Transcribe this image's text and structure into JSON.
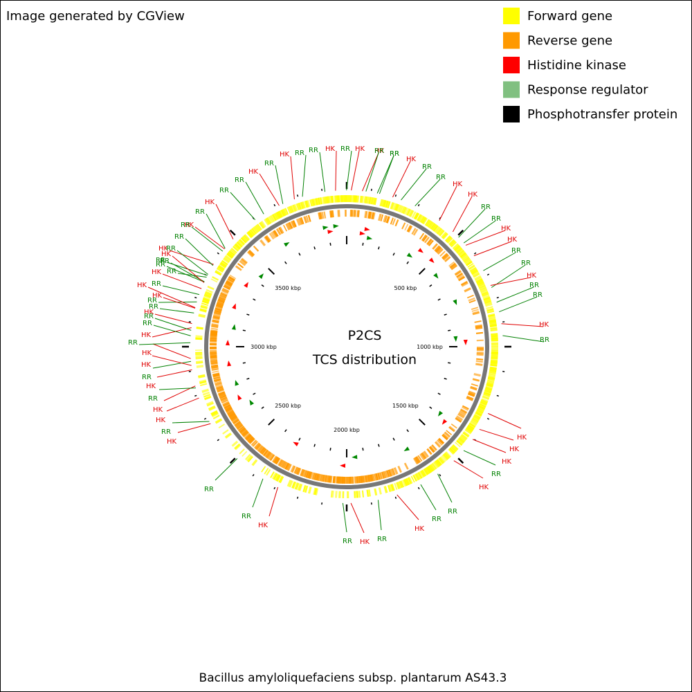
{
  "header": {
    "credit": "Image generated by CGView"
  },
  "legend": [
    {
      "label": "Forward gene",
      "color": "#ffff00"
    },
    {
      "label": "Reverse gene",
      "color": "#ff9900"
    },
    {
      "label": "Histidine kinase",
      "color": "#ff0000"
    },
    {
      "label": "Response regulator",
      "color": "#80c080"
    },
    {
      "label": "Phosphotransfer protein",
      "color": "#000000"
    }
  ],
  "center": {
    "title": "P2CS",
    "subtitle": "TCS distribution"
  },
  "footer": {
    "organism": "Bacillus amyloliquefaciens subsp. plantarum AS43.3"
  },
  "scale_labels": [
    "500 kbp",
    "1000 kbp",
    "1500 kbp",
    "2000 kbp",
    "2500 kbp",
    "3000 kbp",
    "3500 kbp"
  ],
  "feature_labels": [
    {
      "text": "HK",
      "color": "#e00000"
    },
    {
      "text": "RR",
      "color": "#008000"
    },
    {
      "text": "HK",
      "color": "#e00000"
    },
    {
      "text": "RR",
      "color": "#008000"
    },
    {
      "text": "RR",
      "color": "#008000"
    },
    {
      "text": "HK",
      "color": "#e00000"
    },
    {
      "text": "HK",
      "color": "#e00000"
    },
    {
      "text": "RR",
      "color": "#008000"
    },
    {
      "text": "RR",
      "color": "#008000"
    },
    {
      "text": "HK",
      "color": "#e00000"
    },
    {
      "text": "HK",
      "color": "#e00000"
    },
    {
      "text": "RR",
      "color": "#008000"
    },
    {
      "text": "RR",
      "color": "#008000"
    },
    {
      "text": "HK",
      "color": "#e00000"
    },
    {
      "text": "RR",
      "color": "#008000"
    },
    {
      "text": "RR",
      "color": "#008000"
    },
    {
      "text": "HK",
      "color": "#e00000"
    },
    {
      "text": "RR",
      "color": "#008000"
    },
    {
      "text": "HK",
      "color": "#e00000"
    },
    {
      "text": "HK",
      "color": "#e00000"
    },
    {
      "text": "HK",
      "color": "#e00000"
    },
    {
      "text": "RR",
      "color": "#008000"
    },
    {
      "text": "HK",
      "color": "#e00000"
    },
    {
      "text": "RR",
      "color": "#008000"
    },
    {
      "text": "RR",
      "color": "#008000"
    },
    {
      "text": "HK",
      "color": "#e00000"
    },
    {
      "text": "RR",
      "color": "#008000"
    },
    {
      "text": "HK",
      "color": "#e00000"
    },
    {
      "text": "RR",
      "color": "#008000"
    },
    {
      "text": "HK",
      "color": "#e00000"
    },
    {
      "text": "RR",
      "color": "#008000"
    },
    {
      "text": "RR",
      "color": "#008000"
    },
    {
      "text": "HK",
      "color": "#e00000"
    },
    {
      "text": "RR",
      "color": "#008000"
    },
    {
      "text": "HK",
      "color": "#e00000"
    },
    {
      "text": "HK",
      "color": "#e00000"
    },
    {
      "text": "RR",
      "color": "#008000"
    },
    {
      "text": "HK",
      "color": "#e00000"
    },
    {
      "text": "RR",
      "color": "#008000"
    },
    {
      "text": "HK",
      "color": "#e00000"
    },
    {
      "text": "HK",
      "color": "#e00000"
    },
    {
      "text": "RR",
      "color": "#008000"
    },
    {
      "text": "HK",
      "color": "#e00000"
    },
    {
      "text": "RR",
      "color": "#008000"
    },
    {
      "text": "HK",
      "color": "#e00000"
    },
    {
      "text": "RR",
      "color": "#008000"
    },
    {
      "text": "HK",
      "color": "#e00000"
    },
    {
      "text": "RR",
      "color": "#008000"
    },
    {
      "text": "HK",
      "color": "#e00000"
    },
    {
      "text": "RR",
      "color": "#008000"
    },
    {
      "text": "HK",
      "color": "#e00000"
    },
    {
      "text": "RR",
      "color": "#008000"
    },
    {
      "text": "RR",
      "color": "#008000"
    },
    {
      "text": "HK",
      "color": "#e00000"
    },
    {
      "text": "RR",
      "color": "#008000"
    },
    {
      "text": "RR",
      "color": "#008000"
    },
    {
      "text": "HK",
      "color": "#e00000"
    },
    {
      "text": "RR",
      "color": "#008000"
    },
    {
      "text": "RR",
      "color": "#008000"
    },
    {
      "text": "HK",
      "color": "#e00000"
    },
    {
      "text": "RR",
      "color": "#008000"
    },
    {
      "text": "HK",
      "color": "#e00000"
    },
    {
      "text": "RR",
      "color": "#008000"
    },
    {
      "text": "RR",
      "color": "#008000"
    },
    {
      "text": "HK",
      "color": "#e00000"
    },
    {
      "text": "RR",
      "color": "#008000"
    },
    {
      "text": "HK",
      "color": "#e00000"
    },
    {
      "text": "RR",
      "color": "#008000"
    },
    {
      "text": "RR",
      "color": "#008000"
    },
    {
      "text": "HK",
      "color": "#e00000"
    },
    {
      "text": "RR",
      "color": "#008000"
    },
    {
      "text": "RR",
      "color": "#008000"
    },
    {
      "text": "RR",
      "color": "#008000"
    },
    {
      "text": "HK",
      "color": "#e00000"
    },
    {
      "text": "RR",
      "color": "#008000"
    },
    {
      "text": "RR",
      "color": "#008000"
    }
  ]
}
